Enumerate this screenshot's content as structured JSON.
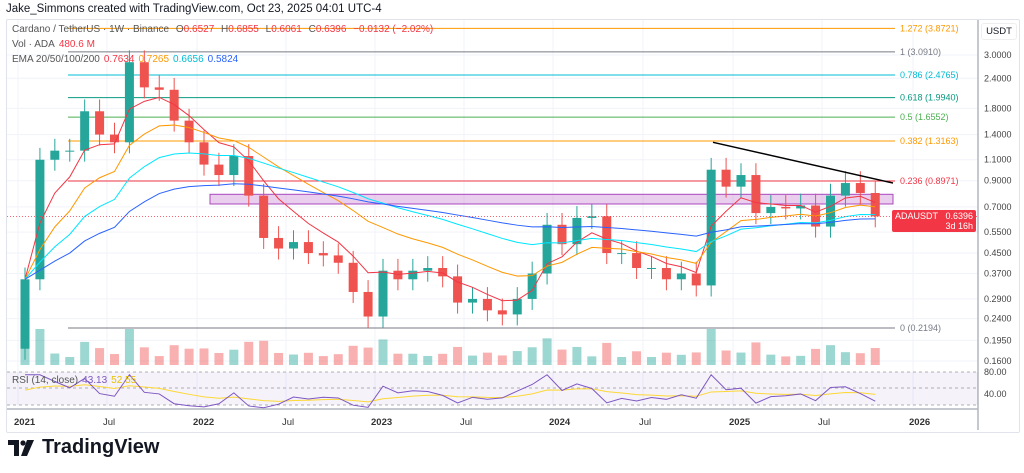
{
  "credit": "Jake_Simmons created with TradingView.com, Oct 23, 2025 04:01 UTC-4",
  "legend": {
    "symbol": "Cardano / TetherUS · 1W · Binance",
    "o_label": "O",
    "o": "0.6527",
    "h_label": "H",
    "h": "0.6855",
    "l_label": "L",
    "l": "0.6061",
    "c_label": "C",
    "c": "0.6396",
    "change": "−0.0132 (−2.02%)",
    "vol_label": "Vol · ADA",
    "vol": "480.6 M",
    "ema_label": "EMA 20/50/100/200",
    "ema20": "0.7634",
    "ema50": "0.7265",
    "ema100": "0.6656",
    "ema200": "0.5824",
    "rsi_label": "RSI (14, close)",
    "rsi": "43.13",
    "rsi_ma": "52.55"
  },
  "currency": "USDT",
  "price_tag": {
    "symbol": "ADAUSDT",
    "price": "0.6396",
    "countdown": "3d 16h"
  },
  "brand": "TradingView",
  "colors": {
    "up": "#26a69a",
    "down": "#ef5350",
    "ema20": "#f23645",
    "ema50": "#ff9800",
    "ema100": "#00e5ff",
    "ema200": "#2962ff",
    "rsi": "#7e57c2",
    "rsi_ma": "#fdd835",
    "box": "#ce93d8"
  },
  "chart_data": {
    "type": "candlestick",
    "scale": "log",
    "grid": true,
    "price_ticks": [
      "3.0000",
      "2.4000",
      "1.8000",
      "1.4000",
      "1.1000",
      "0.9000",
      "0.7000",
      "0.5500",
      "0.4500",
      "0.3700",
      "0.2900",
      "0.2400",
      "0.1950",
      "0.1600"
    ],
    "rsi_ticks": [
      "80.00",
      "40.00"
    ],
    "time_ticks": [
      "2021",
      "Jul",
      "2022",
      "Jul",
      "2023",
      "Jul",
      "2024",
      "Jul",
      "2025",
      "Jul",
      "2026"
    ],
    "fib_levels": [
      {
        "label": "1.272 (3.8721)",
        "price": 3.8721,
        "color": "#ff9800"
      },
      {
        "label": "1 (3.0910)",
        "price": 3.091,
        "color": "#787b86"
      },
      {
        "label": "0.786 (2.4765)",
        "price": 2.4765,
        "color": "#00bcd4"
      },
      {
        "label": "0.618 (1.9940)",
        "price": 1.994,
        "color": "#089981"
      },
      {
        "label": "0.5 (1.6552)",
        "price": 1.6552,
        "color": "#4caf50"
      },
      {
        "label": "0.382 (1.3163)",
        "price": 1.3163,
        "color": "#ff9800"
      },
      {
        "label": "0.236 (0.8971)",
        "price": 0.8971,
        "color": "#f23645"
      },
      {
        "label": "0 (0.2194)",
        "price": 0.2194,
        "color": "#787b86"
      }
    ],
    "support_zone": [
      0.72,
      0.79
    ],
    "trendline": [
      {
        "date": "2024-12",
        "price": 1.3
      },
      {
        "date": "2025-10",
        "price": 0.88
      }
    ],
    "months": [
      "2021-01",
      "2021-02",
      "2021-03",
      "2021-04",
      "2021-05",
      "2021-06",
      "2021-07",
      "2021-08",
      "2021-09",
      "2021-10",
      "2021-11",
      "2021-12",
      "2022-01",
      "2022-02",
      "2022-03",
      "2022-04",
      "2022-05",
      "2022-06",
      "2022-07",
      "2022-08",
      "2022-09",
      "2022-10",
      "2022-11",
      "2022-12",
      "2023-01",
      "2023-02",
      "2023-03",
      "2023-04",
      "2023-05",
      "2023-06",
      "2023-07",
      "2023-08",
      "2023-09",
      "2023-10",
      "2023-11",
      "2023-12",
      "2024-01",
      "2024-02",
      "2024-03",
      "2024-04",
      "2024-05",
      "2024-06",
      "2024-07",
      "2024-08",
      "2024-09",
      "2024-10",
      "2024-11",
      "2024-12",
      "2025-01",
      "2025-02",
      "2025-03",
      "2025-04",
      "2025-05",
      "2025-06",
      "2025-07",
      "2025-08",
      "2025-09",
      "2025-10"
    ],
    "closes": [
      0.35,
      1.1,
      1.2,
      1.2,
      1.75,
      1.4,
      1.3,
      2.8,
      2.2,
      2.15,
      1.6,
      1.3,
      1.05,
      0.95,
      1.14,
      0.78,
      0.52,
      0.47,
      0.5,
      0.45,
      0.44,
      0.41,
      0.31,
      0.245,
      0.38,
      0.35,
      0.38,
      0.39,
      0.36,
      0.28,
      0.29,
      0.26,
      0.25,
      0.29,
      0.37,
      0.59,
      0.49,
      0.63,
      0.64,
      0.45,
      0.45,
      0.39,
      0.39,
      0.35,
      0.37,
      0.33,
      1.0,
      0.85,
      0.95,
      0.66,
      0.7,
      0.69,
      0.71,
      0.58,
      0.78,
      0.88,
      0.8,
      0.6396
    ],
    "open_first": 0.18
  }
}
